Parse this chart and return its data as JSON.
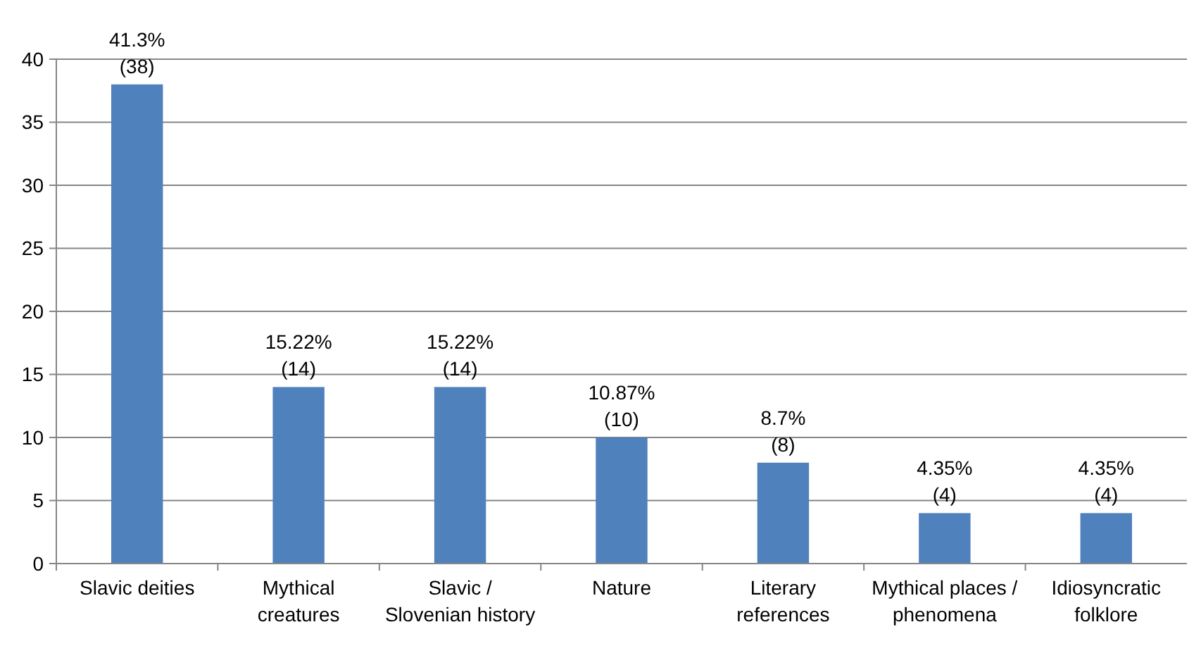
{
  "chart_data": {
    "type": "bar",
    "categories": [
      "Slavic deities",
      "Mythical creatures",
      "Slavic / Slovenian history",
      "Nature",
      "Literary references",
      "Mythical places / phenomena",
      "Idiosyncratic folklore"
    ],
    "values": [
      38,
      14,
      14,
      10,
      8,
      4,
      4
    ],
    "value_labels": [
      "41.3%\n(38)",
      "15.22%\n(14)",
      "15.22%\n(14)",
      "10.87%\n(10)",
      "8.7%\n(8)",
      "4.35%\n(4)",
      "4.35%\n(4)"
    ],
    "color": "#4f81bd",
    "ylim": [
      0,
      40
    ],
    "yticks": [
      0,
      5,
      10,
      15,
      20,
      25,
      30,
      35,
      40
    ],
    "grid": "y"
  }
}
